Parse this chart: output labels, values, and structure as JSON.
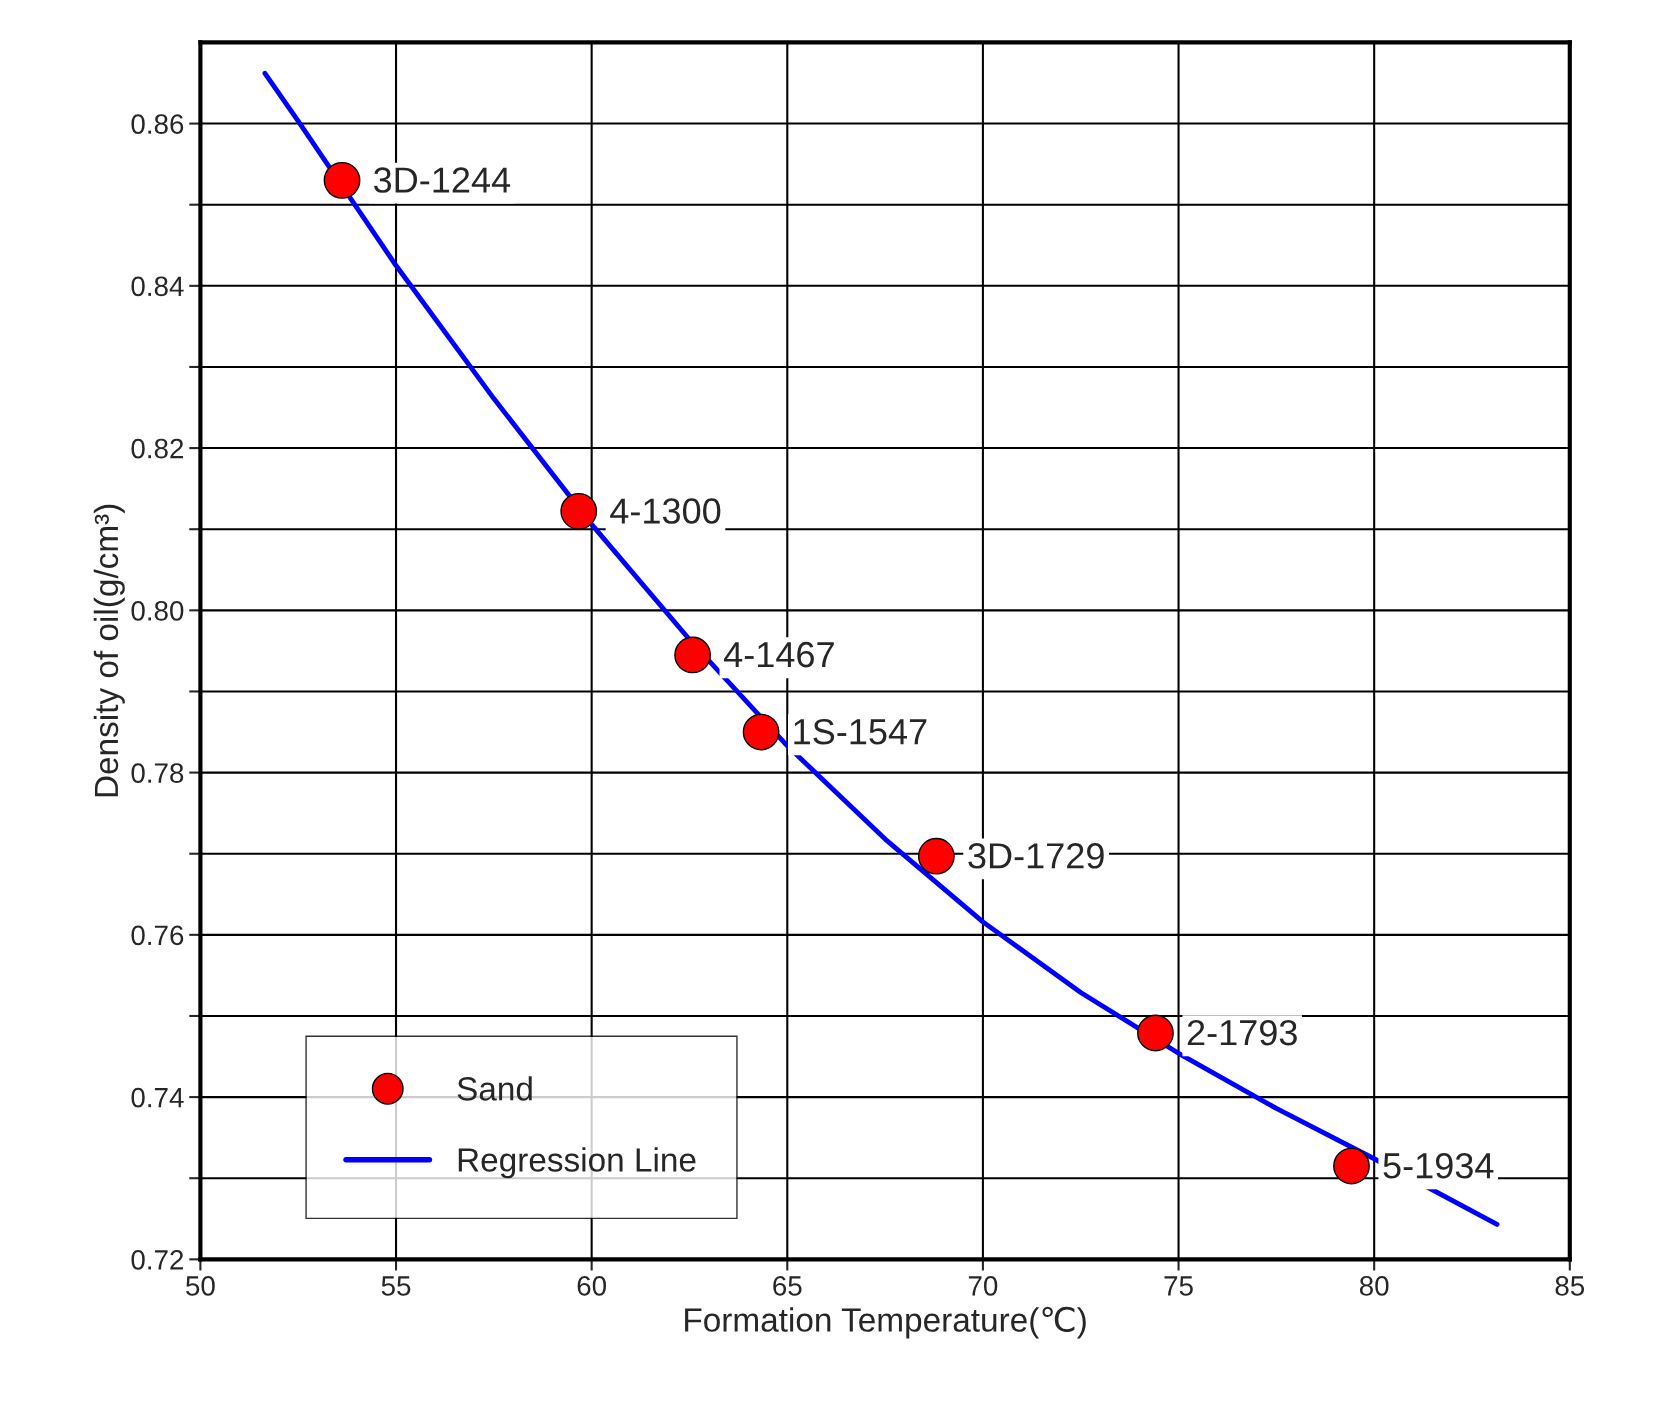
{
  "chart_data": {
    "type": "scatter",
    "xlabel": "Formation Temperature(℃)",
    "ylabel": "Density of oil(g/cm³)",
    "xlim": [
      50,
      85
    ],
    "xticks": [
      50,
      55,
      60,
      65,
      70,
      75,
      80,
      85
    ],
    "ylim": [
      0.72,
      0.87
    ],
    "yticks": [
      0.72,
      {
        "value": 0.73,
        "label": null
      },
      0.74,
      {
        "value": 0.75,
        "label": null
      },
      0.76,
      {
        "value": 0.77,
        "label": null
      },
      0.78,
      {
        "value": 0.79,
        "label": null
      },
      {
        "value": 0.8,
        "label": "0.80"
      },
      {
        "value": 0.81,
        "label": null
      },
      0.82,
      {
        "value": 0.83,
        "label": null
      },
      0.84,
      {
        "value": 0.85,
        "label": null
      },
      0.86
    ],
    "grid": true,
    "legend": "bottom left",
    "series": [
      {
        "name": "Sand",
        "color": "#ff0000",
        "marker": "circle",
        "x": [
          53.62,
          59.67,
          62.58,
          64.33,
          68.81,
          74.41,
          79.42
        ],
        "values": [
          0.853,
          0.8122,
          0.7945,
          0.785,
          0.7697,
          0.7479,
          0.7315
        ]
      },
      {
        "name": "Regression Line",
        "type": "line",
        "color": "#0000ff",
        "line_style": "solid",
        "marker": "none",
        "x": [
          51.65,
          52.5,
          55,
          57.5,
          60,
          62.5,
          65,
          67.5,
          70,
          72.5,
          75,
          77.5,
          80,
          83.14
        ],
        "values": [
          0.8662,
          0.8603,
          0.8425,
          0.8261,
          0.8106,
          0.7964,
          0.7833,
          0.7718,
          0.7616,
          0.7529,
          0.7454,
          0.7386,
          0.7324,
          0.7243
        ]
      }
    ],
    "annotations": [
      {
        "text": "3D-1244",
        "x": 53.62,
        "y": 0.853
      },
      {
        "text": "4-1300",
        "x": 59.67,
        "y": 0.8122
      },
      {
        "text": "4-1467",
        "x": 62.58,
        "y": 0.7945
      },
      {
        "text": "1S-1547",
        "x": 64.33,
        "y": 0.785
      },
      {
        "text": "3D-1729",
        "x": 68.81,
        "y": 0.7697
      },
      {
        "text": "2-1793",
        "x": 74.41,
        "y": 0.7479
      },
      {
        "text": "5-1934",
        "x": 79.42,
        "y": 0.7315
      }
    ]
  }
}
